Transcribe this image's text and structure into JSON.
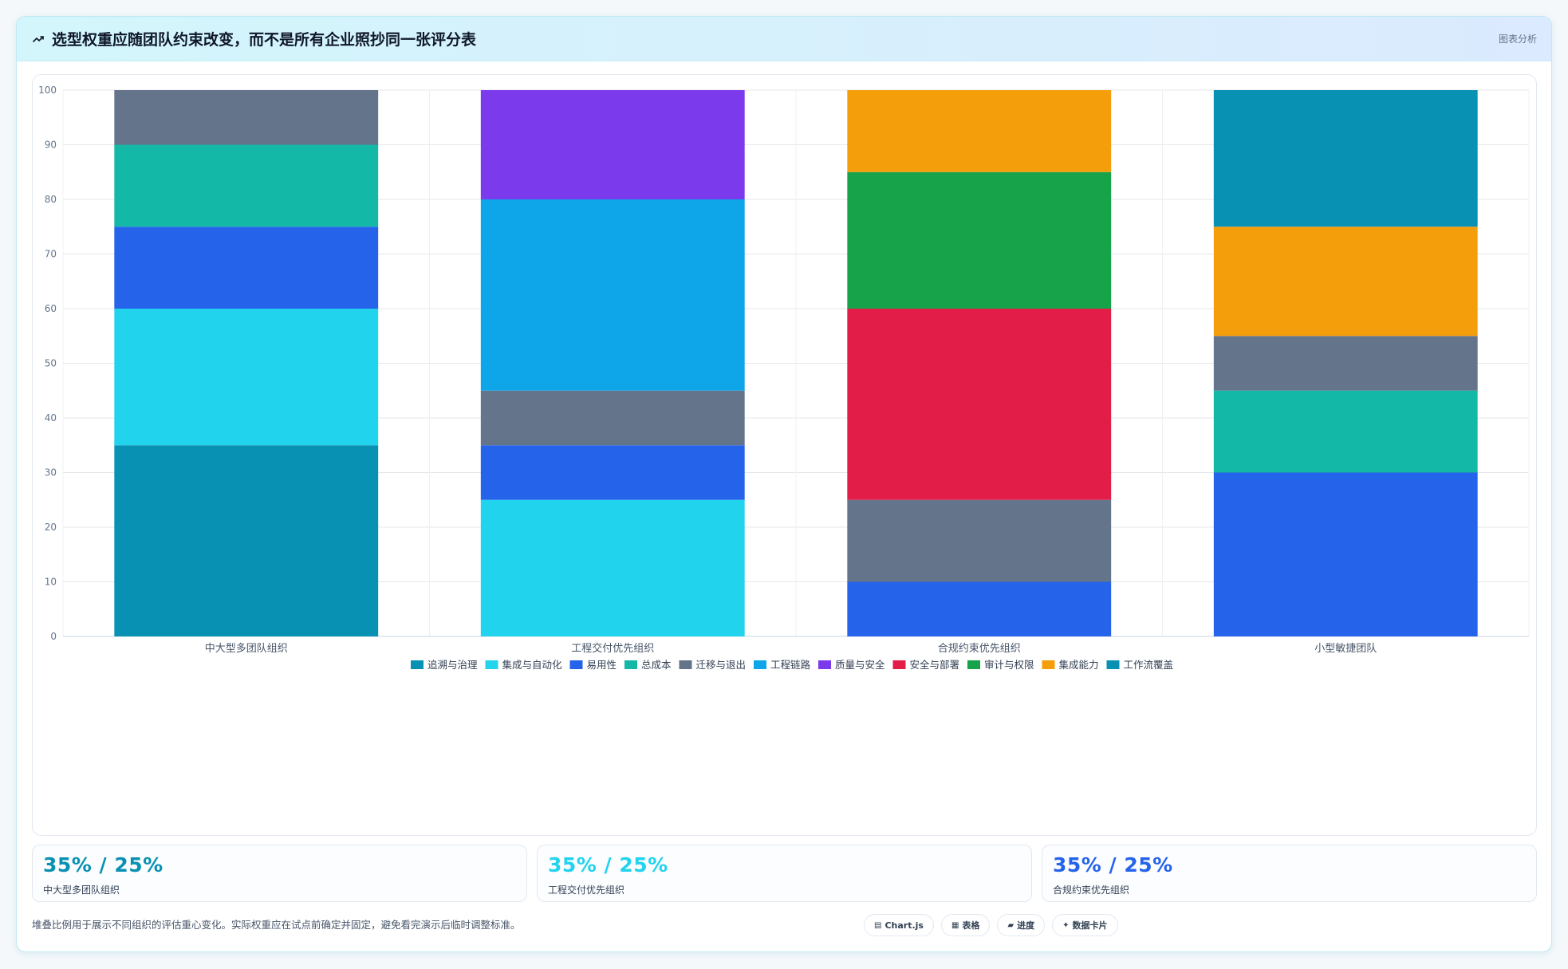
{
  "header": {
    "title": "选型权重应随团队约束改变，而不是所有企业照抄同一张评分表",
    "tag": "图表分析",
    "icon": "trend-line-icon"
  },
  "chart_data": {
    "type": "bar",
    "stacked": true,
    "categories": [
      "中大型多团队组织",
      "工程交付优先组织",
      "合规约束优先组织",
      "小型敏捷团队"
    ],
    "ylim": [
      0,
      100
    ],
    "yticks": [
      0,
      10,
      20,
      30,
      40,
      50,
      60,
      70,
      80,
      90,
      100
    ],
    "grid": true,
    "legend_position": "bottom",
    "series": [
      {
        "name": "追溯与治理",
        "color": "#0891b2",
        "values": [
          35,
          0,
          0,
          0
        ]
      },
      {
        "name": "集成与自动化",
        "color": "#22d3ee",
        "values": [
          25,
          25,
          0,
          0
        ]
      },
      {
        "name": "易用性",
        "color": "#2563eb",
        "values": [
          15,
          10,
          10,
          30
        ]
      },
      {
        "name": "总成本",
        "color": "#14b8a6",
        "values": [
          15,
          0,
          0,
          15
        ]
      },
      {
        "name": "迁移与退出",
        "color": "#64748b",
        "values": [
          10,
          10,
          15,
          10
        ]
      },
      {
        "name": "工程链路",
        "color": "#0ea5e9",
        "values": [
          0,
          35,
          0,
          0
        ]
      },
      {
        "name": "质量与安全",
        "color": "#7c3aed",
        "values": [
          0,
          20,
          0,
          0
        ]
      },
      {
        "name": "安全与部署",
        "color": "#e11d48",
        "values": [
          0,
          0,
          35,
          0
        ]
      },
      {
        "name": "审计与权限",
        "color": "#16a34a",
        "values": [
          0,
          0,
          25,
          0
        ]
      },
      {
        "name": "集成能力",
        "color": "#f59e0b",
        "values": [
          0,
          0,
          15,
          20
        ]
      },
      {
        "name": "工作流覆盖",
        "color": "#0891b2",
        "values": [
          0,
          0,
          0,
          25
        ]
      }
    ]
  },
  "stats": [
    {
      "value": "35% / 25%",
      "label": "中大型多团队组织",
      "color": "#0891b2"
    },
    {
      "value": "35% / 25%",
      "label": "工程交付优先组织",
      "color": "#22d3ee"
    },
    {
      "value": "35% / 25%",
      "label": "合规约束优先组织",
      "color": "#2563eb"
    }
  ],
  "footnote": "堆叠比例用于展示不同组织的评估重心变化。实际权重应在试点前确定并固定，避免看完演示后临时调整标准。",
  "pills": [
    {
      "label": "Chart.js",
      "icon": "chart-icon",
      "glyph": "▤"
    },
    {
      "label": "表格",
      "icon": "table-icon",
      "glyph": "▦"
    },
    {
      "label": "进度",
      "icon": "progress-icon",
      "glyph": "▰"
    },
    {
      "label": "数据卡片",
      "icon": "sparkle-icon",
      "glyph": "✦"
    }
  ]
}
